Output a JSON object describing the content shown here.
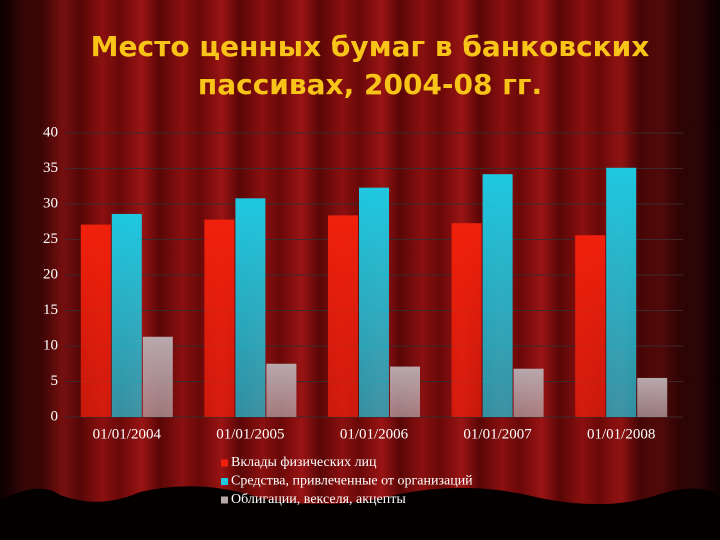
{
  "chart_data": {
    "type": "bar",
    "title": "Место ценных бумаг в банковских пассивах, 2004-08 гг.",
    "categories": [
      "01/01/2004",
      "01/01/2005",
      "01/01/2006",
      "01/01/2007",
      "01/01/2008"
    ],
    "series": [
      {
        "name": "Вклады физических лиц",
        "color": "#f0200c",
        "values": [
          27.1,
          27.8,
          28.4,
          27.3,
          25.6
        ]
      },
      {
        "name": "Средства, привлеченные от организаций",
        "color": "#1fc8e0",
        "values": [
          28.6,
          30.8,
          32.3,
          34.2,
          35.1
        ]
      },
      {
        "name": "Облигации, векселя, акцепты",
        "color": "#b8a8ac",
        "values": [
          11.3,
          7.5,
          7.1,
          6.8,
          5.5
        ]
      }
    ],
    "ylim": [
      0,
      40
    ],
    "yticks": [
      0,
      5,
      10,
      15,
      20,
      25,
      30,
      35,
      40
    ],
    "grid": true
  }
}
